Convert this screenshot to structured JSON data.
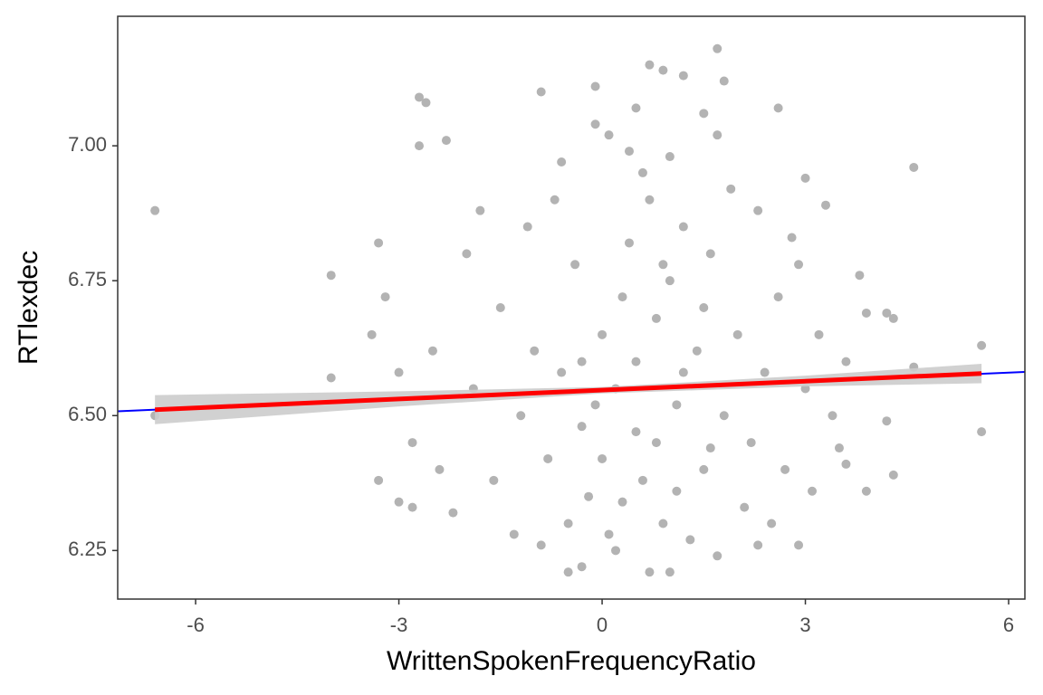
{
  "chart_data": {
    "type": "scatter",
    "x_label": "WrittenSpokenFrequencyRatio",
    "y_label": "RTlexdec",
    "xlim": [
      -7.15,
      6.24
    ],
    "ylim": [
      6.16,
      7.24
    ],
    "xticks": [
      -6,
      -3,
      0,
      3,
      6
    ],
    "yticks": [
      {
        "value": 6.25,
        "label": "6.25"
      },
      {
        "value": 6.5,
        "label": "6.50"
      },
      {
        "value": 6.75,
        "label": "6.75"
      },
      {
        "value": 7,
        "label": "7.00"
      }
    ],
    "series": [
      {
        "color": "#b3b3b3",
        "x": [
          -6.6,
          -6.6,
          -4.0,
          -4.0,
          5.6,
          5.6,
          4.6,
          4.6,
          1.7,
          0.7,
          0.9,
          1.2,
          1.8,
          -0.9,
          -0.1,
          -2.6,
          -2.7,
          2.6,
          1.5,
          0.5,
          0.7,
          -0.5,
          1.0,
          -0.3,
          -3.3,
          -3.0,
          -2.8,
          2.9,
          4.3,
          4.2,
          3.9,
          4.2,
          4.3,
          3.9,
          3.6,
          -3.4,
          -3.3,
          -2.7,
          -2.3,
          -0.1,
          0.1,
          1.7,
          3.0,
          3.3,
          3.8,
          0.2,
          0.5,
          0.8,
          1.1,
          -0.3,
          0.0,
          1.4,
          0.6,
          -0.6,
          1.8,
          0.3,
          1.0,
          -0.2,
          0.9,
          1.5,
          -0.8,
          2.0,
          0.4,
          1.2,
          -0.4,
          0.7,
          1.6,
          -1.0,
          2.2,
          -1.2,
          2.4,
          0.1,
          1.3,
          -0.5,
          2.1,
          -1.5,
          2.6,
          -1.6,
          2.7,
          -1.9,
          3.0,
          -2.0,
          2.8,
          -2.2,
          2.5,
          0.6,
          1.9,
          -0.7,
          -1.1,
          3.2,
          -2.5,
          0.2,
          1.7,
          -0.9,
          3.4,
          -2.8,
          3.6,
          -3.0,
          0.8,
          0.0,
          1.1,
          1.5,
          -0.3,
          0.5,
          1.2,
          0.3,
          0.9,
          -0.1,
          1.6,
          2.3,
          -1.8,
          3.1,
          -2.4,
          2.9,
          -3.2,
          3.5,
          -1.3,
          2.3,
          1.0,
          0.4,
          -0.6
        ],
        "values": [
          6.88,
          6.5,
          6.76,
          6.57,
          6.63,
          6.47,
          6.96,
          6.59,
          7.18,
          7.15,
          7.14,
          7.13,
          7.12,
          7.1,
          7.11,
          7.08,
          7.09,
          7.07,
          7.06,
          7.07,
          6.21,
          6.21,
          6.21,
          6.22,
          6.38,
          6.34,
          6.33,
          6.26,
          6.39,
          6.49,
          6.69,
          6.69,
          6.68,
          6.36,
          6.41,
          6.65,
          6.82,
          7.0,
          7.01,
          7.04,
          7.02,
          7.02,
          6.94,
          6.89,
          6.76,
          6.55,
          6.6,
          6.45,
          6.52,
          6.48,
          6.65,
          6.62,
          6.38,
          6.58,
          6.5,
          6.72,
          6.75,
          6.35,
          6.3,
          6.4,
          6.42,
          6.65,
          6.82,
          6.85,
          6.78,
          6.9,
          6.8,
          6.62,
          6.45,
          6.5,
          6.58,
          6.28,
          6.27,
          6.3,
          6.33,
          6.7,
          6.72,
          6.38,
          6.4,
          6.55,
          6.55,
          6.8,
          6.83,
          6.32,
          6.3,
          6.95,
          6.92,
          6.9,
          6.85,
          6.65,
          6.62,
          6.25,
          6.24,
          6.26,
          6.5,
          6.45,
          6.6,
          6.58,
          6.68,
          6.42,
          6.36,
          6.7,
          6.6,
          6.47,
          6.58,
          6.34,
          6.78,
          6.52,
          6.44,
          6.88,
          6.88,
          6.36,
          6.4,
          6.78,
          6.72,
          6.44,
          6.28,
          6.26,
          6.98,
          6.99,
          6.97
        ]
      }
    ],
    "band": {
      "color": "#cccccc",
      "x": [
        -6.6,
        -3,
        0,
        3,
        5.6
      ],
      "lower": [
        6.484,
        6.517,
        6.541,
        6.554,
        6.56
      ],
      "upper": [
        6.538,
        6.545,
        6.553,
        6.574,
        6.596
      ]
    },
    "lines": [
      {
        "color": "#0000ff",
        "x": [
          -7.15,
          6.24
        ],
        "values": [
          6.508,
          6.581
        ]
      },
      {
        "color": "#ff0000",
        "x": [
          -6.6,
          5.6
        ],
        "values": [
          6.511,
          6.578
        ]
      }
    ]
  }
}
